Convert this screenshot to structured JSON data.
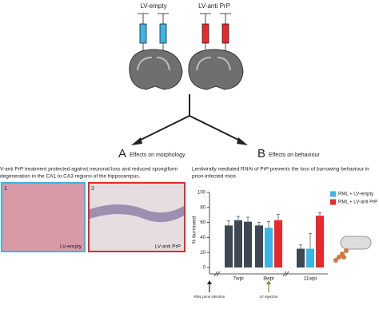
{
  "top": {
    "labels": [
      "LV-empty",
      "LV-anti PrP"
    ]
  },
  "panel_a": {
    "letter": "A",
    "title": "Effects on morphology",
    "text_lines": [
      "V-anti PrP treatment protected against neuronal loss and reduced spongiform",
      "degeneration in the CA1 to CA3 regions of the hippocampus."
    ],
    "images": [
      {
        "number": "1",
        "label": "LV-empty"
      },
      {
        "number": "2",
        "label": "LV-anti PrP"
      }
    ]
  },
  "panel_b": {
    "letter": "B",
    "title": "Effects on behaviour",
    "text_lines": [
      "Lentivirally mediated RNAi of PrP prevents the loss of burrowing behaviour in",
      "prion-infected mice."
    ],
    "chart_data": {
      "type": "bar",
      "ylabel": "% burrowed",
      "categories": [
        "7wpi",
        "8wpi",
        "11wpi"
      ],
      "series": [
        {
          "color": "#3d4852",
          "values": [
            56,
            56,
            25
          ],
          "errors": [
            6,
            4,
            5
          ]
        },
        {
          "color": "#3d4852",
          "values": [
            63,
            null,
            null
          ],
          "errors": [
            5,
            null,
            null
          ]
        },
        {
          "color": "#3d4852",
          "values": [
            61,
            null,
            null
          ],
          "errors": [
            6,
            null,
            null
          ]
        },
        {
          "name": "RML + LV-empty",
          "color": "#3cb4e6",
          "values": [
            null,
            53,
            25
          ],
          "errors": [
            null,
            8,
            20
          ]
        },
        {
          "name": "RML + LV-anti PrP",
          "color": "#e8282d",
          "values": [
            null,
            63,
            69
          ],
          "errors": [
            null,
            8,
            4
          ]
        }
      ],
      "ylim": [
        0,
        100
      ],
      "yticks": [
        0,
        20,
        40,
        60,
        80,
        100
      ],
      "annotations": [
        "RML prion infection",
        "LV injection"
      ]
    }
  }
}
